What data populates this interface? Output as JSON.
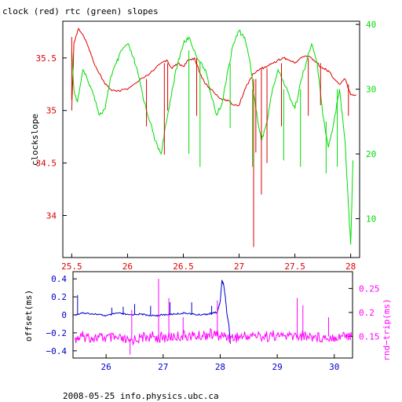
{
  "title": "clock (red) rtc (green) slopes",
  "footer": "2008-05-25 info.physics.ubc.ca",
  "colors": {
    "red": "#dd0000",
    "green": "#00dd00",
    "blue": "#0000cc",
    "magenta": "#ff00ff",
    "axis": "#000000"
  },
  "chart_data": [
    {
      "type": "line",
      "title": "clock (red) rtc (green) slopes",
      "ylabel": "clockslope",
      "y2label": "",
      "xlim": [
        25.42,
        28.08
      ],
      "ylim": [
        33.6,
        35.85
      ],
      "y2lim": [
        4,
        40.5
      ],
      "xticks": [
        "25.5",
        "26",
        "26.5",
        "27",
        "27.5",
        "28"
      ],
      "yticks": [
        "34",
        "34.5",
        "35",
        "35.5"
      ],
      "y2ticks": [
        "10",
        "20",
        "30",
        "40"
      ],
      "grid": false,
      "series": [
        {
          "color": "red",
          "axis": "left",
          "x": [
            25.5,
            25.52,
            25.56,
            25.6,
            25.65,
            25.7,
            25.75,
            25.8,
            25.85,
            25.9,
            26.0,
            26.1,
            26.2,
            26.3,
            26.35,
            26.4,
            26.45,
            26.5,
            26.55,
            26.6,
            26.65,
            26.7,
            26.75,
            26.8,
            26.85,
            26.9,
            26.95,
            27.0,
            27.05,
            27.1,
            27.13,
            27.2,
            27.25,
            27.3,
            27.35,
            27.4,
            27.45,
            27.5,
            27.55,
            27.6,
            27.65,
            27.7,
            27.75,
            27.8,
            27.85,
            27.9,
            27.95,
            28.0,
            28.05
          ],
          "y": [
            35.0,
            35.65,
            35.78,
            35.72,
            35.6,
            35.45,
            35.35,
            35.25,
            35.2,
            35.18,
            35.2,
            35.28,
            35.35,
            35.45,
            35.48,
            35.4,
            35.45,
            35.42,
            35.48,
            35.5,
            35.35,
            35.25,
            35.2,
            35.15,
            35.1,
            35.1,
            35.05,
            35.05,
            35.2,
            35.3,
            35.35,
            35.4,
            35.42,
            35.45,
            35.48,
            35.5,
            35.48,
            35.45,
            35.5,
            35.52,
            35.5,
            35.45,
            35.4,
            35.38,
            35.3,
            35.25,
            35.3,
            35.15,
            35.15
          ]
        },
        {
          "color": "green",
          "axis": "right",
          "x": [
            25.5,
            25.52,
            25.55,
            25.6,
            25.65,
            25.7,
            25.75,
            25.8,
            25.85,
            25.9,
            25.95,
            26.0,
            26.05,
            26.1,
            26.15,
            26.2,
            26.25,
            26.3,
            26.35,
            26.4,
            26.45,
            26.5,
            26.55,
            26.6,
            26.65,
            26.7,
            26.75,
            26.8,
            26.85,
            26.9,
            26.95,
            27.0,
            27.05,
            27.1,
            27.15,
            27.2,
            27.25,
            27.3,
            27.35,
            27.4,
            27.45,
            27.5,
            27.55,
            27.6,
            27.65,
            27.7,
            27.75,
            27.8,
            27.85,
            27.9,
            27.95,
            27.98,
            28.0,
            28.02
          ],
          "y": [
            36.0,
            30.0,
            28.0,
            33.0,
            31.0,
            29.0,
            26.0,
            27.0,
            32.0,
            34.0,
            36.0,
            37.0,
            35.0,
            32.0,
            28.0,
            25.0,
            22.0,
            20.0,
            25.0,
            30.0,
            34.0,
            37.0,
            38.0,
            36.0,
            34.0,
            33.0,
            29.0,
            26.0,
            28.0,
            33.0,
            37.0,
            39.0,
            38.0,
            34.0,
            27.0,
            22.0,
            25.0,
            30.0,
            33.0,
            31.0,
            29.0,
            27.0,
            31.0,
            34.0,
            37.0,
            34.0,
            26.0,
            21.0,
            25.0,
            30.0,
            22.0,
            12.0,
            6.0,
            19.0
          ]
        }
      ],
      "spikes": [
        {
          "color": "red",
          "axis": "left",
          "x": 25.5,
          "from": 35.1,
          "to": 35.7
        },
        {
          "color": "red",
          "axis": "left",
          "x": 26.17,
          "from": 35.3,
          "to": 34.85
        },
        {
          "color": "red",
          "axis": "left",
          "x": 26.33,
          "from": 35.45,
          "to": 34.58
        },
        {
          "color": "red",
          "axis": "left",
          "x": 26.36,
          "from": 35.45,
          "to": 35.0
        },
        {
          "color": "red",
          "axis": "left",
          "x": 26.62,
          "from": 35.5,
          "to": 34.95
        },
        {
          "color": "red",
          "axis": "left",
          "x": 27.13,
          "from": 35.3,
          "to": 33.7
        },
        {
          "color": "red",
          "axis": "left",
          "x": 27.15,
          "from": 35.3,
          "to": 34.6
        },
        {
          "color": "red",
          "axis": "left",
          "x": 27.2,
          "from": 35.4,
          "to": 34.2
        },
        {
          "color": "red",
          "axis": "left",
          "x": 27.25,
          "from": 35.4,
          "to": 34.5
        },
        {
          "color": "red",
          "axis": "left",
          "x": 27.38,
          "from": 35.45,
          "to": 34.85
        },
        {
          "color": "red",
          "axis": "left",
          "x": 27.62,
          "from": 35.5,
          "to": 34.95
        },
        {
          "color": "red",
          "axis": "left",
          "x": 27.73,
          "from": 35.45,
          "to": 35.05
        },
        {
          "color": "red",
          "axis": "left",
          "x": 27.98,
          "from": 35.25,
          "to": 34.95
        },
        {
          "color": "green",
          "axis": "right",
          "x": 26.55,
          "from": 36.0,
          "to": 20.0
        },
        {
          "color": "green",
          "axis": "right",
          "x": 26.65,
          "from": 34.0,
          "to": 18.0
        },
        {
          "color": "green",
          "axis": "right",
          "x": 26.92,
          "from": 34.0,
          "to": 24.0
        },
        {
          "color": "green",
          "axis": "right",
          "x": 27.12,
          "from": 30.0,
          "to": 18.0
        },
        {
          "color": "green",
          "axis": "right",
          "x": 27.4,
          "from": 30.0,
          "to": 19.0
        },
        {
          "color": "green",
          "axis": "right",
          "x": 27.55,
          "from": 30.0,
          "to": 18.0
        },
        {
          "color": "green",
          "axis": "right",
          "x": 27.78,
          "from": 25.0,
          "to": 17.0
        },
        {
          "color": "green",
          "axis": "right",
          "x": 27.88,
          "from": 30.0,
          "to": 18.0
        }
      ]
    },
    {
      "type": "line",
      "ylabel": "offset(ms)",
      "y2label": "rnd−trip(ms)",
      "xlim": [
        25.42,
        30.32
      ],
      "ylim": [
        -0.48,
        0.48
      ],
      "y2lim": [
        0.105,
        0.285
      ],
      "xticks": [
        "26",
        "27",
        "28",
        "29",
        "30"
      ],
      "yticks": [
        "−0.4",
        "−0.2",
        "0",
        "0.2",
        "0.4"
      ],
      "y2ticks": [
        "0.15",
        "0.2",
        "0.25"
      ],
      "grid": false,
      "series": [
        {
          "color": "blue",
          "axis": "left",
          "x": [
            25.45,
            25.6,
            25.8,
            26.0,
            26.2,
            26.4,
            26.6,
            26.8,
            27.0,
            27.2,
            27.4,
            27.6,
            27.8,
            27.95,
            28.0,
            28.03,
            28.06,
            28.09,
            28.12,
            28.15,
            28.18
          ],
          "y": [
            0.0,
            0.02,
            0.01,
            -0.01,
            0.02,
            0.0,
            0.01,
            -0.01,
            0.0,
            0.01,
            0.02,
            0.0,
            0.01,
            0.03,
            0.15,
            0.38,
            0.34,
            0.2,
            0.0,
            -0.1,
            -0.32
          ]
        },
        {
          "color": "magenta",
          "axis": "right",
          "x": [
            25.45,
            25.6,
            25.8,
            26.0,
            26.2,
            26.4,
            26.6,
            26.8,
            27.0,
            27.2,
            27.4,
            27.6,
            27.8,
            28.0,
            28.2,
            28.4,
            28.6,
            28.8,
            29.0,
            29.2,
            29.4,
            29.6,
            29.8,
            30.0,
            30.2,
            30.3
          ],
          "y": [
            0.145,
            0.15,
            0.148,
            0.147,
            0.145,
            0.14,
            0.148,
            0.15,
            0.147,
            0.15,
            0.152,
            0.15,
            0.155,
            0.152,
            0.148,
            0.15,
            0.152,
            0.15,
            0.153,
            0.15,
            0.152,
            0.15,
            0.148,
            0.15,
            0.152,
            0.15
          ]
        }
      ],
      "spikes": [
        {
          "color": "blue",
          "axis": "left",
          "x": 25.5,
          "from": 0.0,
          "to": 0.22
        },
        {
          "color": "blue",
          "axis": "left",
          "x": 26.1,
          "from": 0.0,
          "to": 0.08
        },
        {
          "color": "blue",
          "axis": "left",
          "x": 26.3,
          "from": 0.0,
          "to": 0.09
        },
        {
          "color": "blue",
          "axis": "left",
          "x": 26.5,
          "from": 0.0,
          "to": 0.12
        },
        {
          "color": "blue",
          "axis": "left",
          "x": 26.78,
          "from": 0.0,
          "to": 0.1
        },
        {
          "color": "blue",
          "axis": "left",
          "x": 27.12,
          "from": 0.0,
          "to": 0.14
        },
        {
          "color": "blue",
          "axis": "left",
          "x": 27.5,
          "from": 0.0,
          "to": 0.14
        },
        {
          "color": "blue",
          "axis": "left",
          "x": 27.85,
          "from": 0.0,
          "to": 0.1
        },
        {
          "color": "magenta",
          "axis": "right",
          "x": 26.45,
          "from": 0.145,
          "to": 0.205
        },
        {
          "color": "magenta",
          "axis": "right",
          "x": 26.92,
          "from": 0.15,
          "to": 0.27
        },
        {
          "color": "magenta",
          "axis": "right",
          "x": 27.1,
          "from": 0.15,
          "to": 0.23
        },
        {
          "color": "magenta",
          "axis": "right",
          "x": 27.35,
          "from": 0.15,
          "to": 0.19
        },
        {
          "color": "magenta",
          "axis": "right",
          "x": 27.95,
          "from": 0.15,
          "to": 0.225
        },
        {
          "color": "magenta",
          "axis": "right",
          "x": 29.35,
          "from": 0.15,
          "to": 0.23
        },
        {
          "color": "magenta",
          "axis": "right",
          "x": 29.45,
          "from": 0.15,
          "to": 0.215
        },
        {
          "color": "magenta",
          "axis": "right",
          "x": 29.9,
          "from": 0.15,
          "to": 0.19
        },
        {
          "color": "magenta",
          "axis": "right",
          "x": 26.42,
          "from": 0.145,
          "to": 0.112
        }
      ]
    }
  ]
}
